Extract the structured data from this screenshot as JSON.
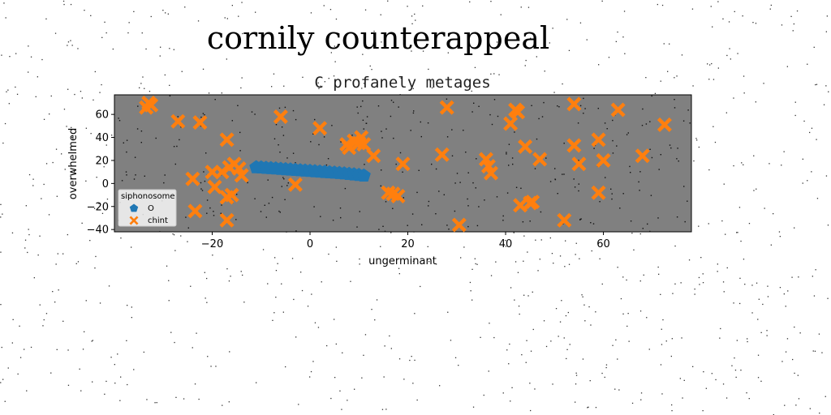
{
  "figure": {
    "suptitle": "cornily counterappeal"
  },
  "chart_data": {
    "type": "scatter",
    "title": "C profanely metages",
    "xlabel": "ungerminant",
    "ylabel": "overwhelmed",
    "xlim": [
      -40,
      78
    ],
    "ylim": [
      -42,
      77
    ],
    "xticks": [
      -20,
      0,
      20,
      40,
      60
    ],
    "yticks": [
      -40,
      -20,
      0,
      20,
      40,
      60
    ],
    "grid": false,
    "legend": {
      "title": "siphonosome",
      "placement": "lower-left"
    },
    "series": [
      {
        "name": "O",
        "marker": "pentagon",
        "color": "#1f77b4",
        "points": [
          [
            -11,
            14
          ],
          [
            -10,
            13.8
          ],
          [
            -9,
            13.5
          ],
          [
            -8,
            13.2
          ],
          [
            -7,
            12.9
          ],
          [
            -6,
            12.6
          ],
          [
            -5,
            12.3
          ],
          [
            -4,
            12.0
          ],
          [
            -3,
            11.7
          ],
          [
            -2,
            11.4
          ],
          [
            -1,
            11.1
          ],
          [
            0,
            10.8
          ],
          [
            1,
            10.5
          ],
          [
            2,
            10.2
          ],
          [
            3,
            9.9
          ],
          [
            4,
            9.6
          ],
          [
            5,
            9.3
          ],
          [
            6,
            9.0
          ],
          [
            7,
            8.6
          ],
          [
            8,
            8.2
          ],
          [
            9,
            7.8
          ],
          [
            10,
            7.3
          ],
          [
            11,
            6.8
          ]
        ]
      },
      {
        "name": "chint",
        "marker": "X",
        "color": "#ff7f0e",
        "points": [
          [
            -33.5,
            66
          ],
          [
            -33,
            70
          ],
          [
            -32.5,
            68
          ],
          [
            -27,
            54
          ],
          [
            -22.5,
            53
          ],
          [
            -24,
            4
          ],
          [
            -23.5,
            -24
          ],
          [
            -20,
            10
          ],
          [
            -19.5,
            -3
          ],
          [
            -18,
            10
          ],
          [
            -17,
            38
          ],
          [
            -17,
            -12
          ],
          [
            -17,
            -32
          ],
          [
            -16.5,
            14
          ],
          [
            -16,
            -10
          ],
          [
            -15.5,
            17
          ],
          [
            -14.5,
            13
          ],
          [
            -14,
            7
          ],
          [
            -6,
            58
          ],
          [
            -3,
            -1
          ],
          [
            2,
            48
          ],
          [
            7.5,
            34
          ],
          [
            8,
            31
          ],
          [
            9,
            37
          ],
          [
            10,
            35
          ],
          [
            10.5,
            40
          ],
          [
            11,
            34
          ],
          [
            13,
            24
          ],
          [
            16,
            -8
          ],
          [
            17,
            -9
          ],
          [
            18,
            -11
          ],
          [
            19,
            17
          ],
          [
            27,
            25
          ],
          [
            28,
            66
          ],
          [
            30.5,
            -36
          ],
          [
            36,
            21
          ],
          [
            36.5,
            15
          ],
          [
            37,
            9
          ],
          [
            41,
            52
          ],
          [
            42,
            64
          ],
          [
            42.5,
            62
          ],
          [
            43,
            -19
          ],
          [
            44,
            32
          ],
          [
            45,
            -17
          ],
          [
            45.5,
            -16
          ],
          [
            47,
            21
          ],
          [
            52,
            -32
          ],
          [
            54,
            69
          ],
          [
            54,
            33
          ],
          [
            55,
            17
          ],
          [
            59,
            38
          ],
          [
            59,
            -8
          ],
          [
            60,
            20
          ],
          [
            63,
            64
          ],
          [
            68,
            24
          ],
          [
            72.5,
            51
          ]
        ]
      }
    ]
  }
}
